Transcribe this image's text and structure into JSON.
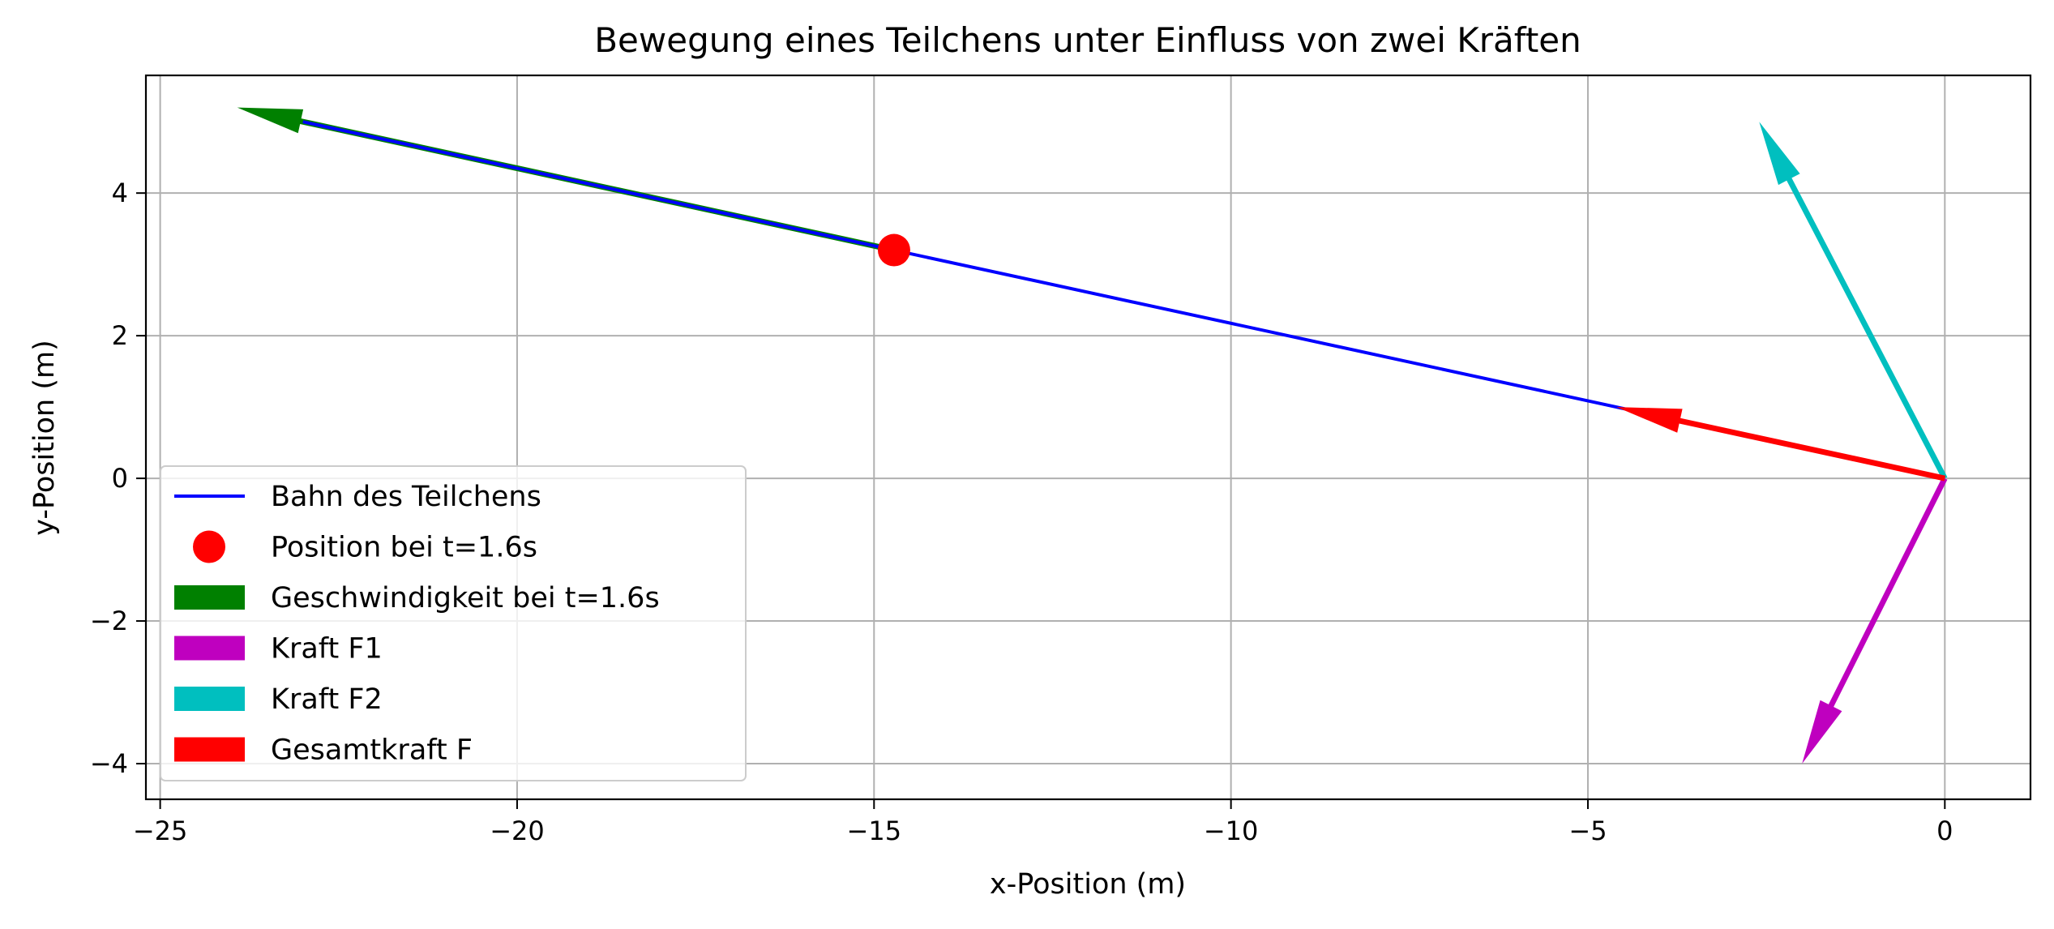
{
  "chart_data": {
    "type": "line",
    "title": "Bewegung eines Teilchens unter Einfluss von zwei Kräften",
    "xlabel": "x-Position (m)",
    "ylabel": "y-Position (m)",
    "xlim": [
      -25.2,
      1.2
    ],
    "ylim": [
      -4.5,
      5.65
    ],
    "xticks": [
      -25,
      -20,
      -15,
      -10,
      -5,
      0
    ],
    "yticks": [
      -4,
      -2,
      0,
      2,
      4
    ],
    "xtick_labels": [
      "−25",
      "−20",
      "−15",
      "−10",
      "−5",
      "0"
    ],
    "ytick_labels": [
      "−4",
      "−2",
      "0",
      "2",
      "4"
    ],
    "grid": true,
    "legend_position": "lower-left",
    "trajectory": {
      "name": "Bahn des Teilchens",
      "color": "#0000ff",
      "x": [
        0,
        -23
      ],
      "y": [
        0,
        5
      ]
    },
    "position_marker": {
      "name": "Position bei t=1.6s",
      "color": "#ff0000",
      "x": -14.72,
      "y": 3.2
    },
    "arrows": [
      {
        "name": "Geschwindigkeit bei t=1.6s",
        "color": "#008000",
        "x": -14.72,
        "y": 3.2,
        "dx": -9.2,
        "dy": 2.0
      },
      {
        "name": "Kraft F1",
        "color": "#bf00bf",
        "x": 0,
        "y": 0,
        "dx": -2.0,
        "dy": -4.0
      },
      {
        "name": "Kraft F2",
        "color": "#00bfbf",
        "x": 0,
        "y": 0,
        "dx": -2.6,
        "dy": 5.0
      },
      {
        "name": "Gesamtkraft F",
        "color": "#ff0000",
        "x": 0,
        "y": 0,
        "dx": -4.6,
        "dy": 1.0
      }
    ]
  }
}
